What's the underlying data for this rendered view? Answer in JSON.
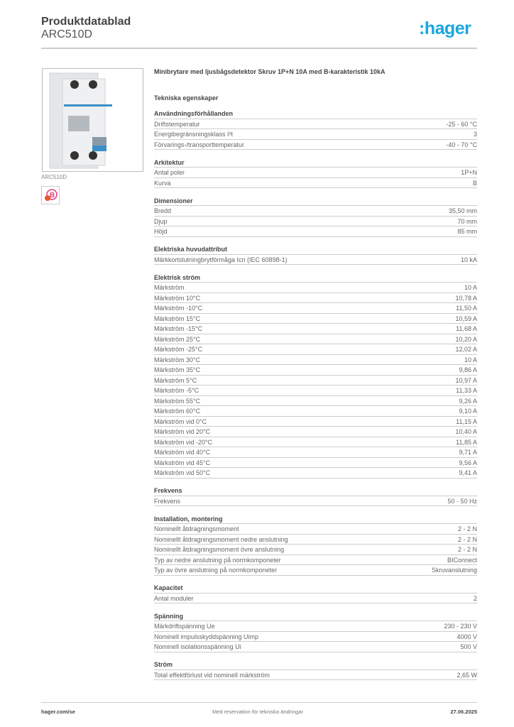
{
  "header": {
    "title": "Produktdatablad",
    "product_code": "ARC510D",
    "logo_text": ":hager",
    "brand_color": "#1aa6df"
  },
  "product": {
    "image_label": "ARC510D",
    "badge_icon": "arc-fault-curve-b-icon",
    "description": "Minibrytare med ljusbågsdetektor Skruv 1P+N 10A med B-karakteristik 10kA"
  },
  "tech_heading": "Tekniska egenskaper",
  "sections": [
    {
      "title": "Användningsförhållanden",
      "rows": [
        {
          "label": "Driftstemperatur",
          "value": "-25 - 60 °C"
        },
        {
          "label": "Energibegränsningsklass I²t",
          "value": "3"
        },
        {
          "label": "Förvarings-/transporttemperatur",
          "value": "-40 - 70 °C"
        }
      ]
    },
    {
      "title": "Arkitektur",
      "rows": [
        {
          "label": "Antal poler",
          "value": "1P+N"
        },
        {
          "label": "Kurva",
          "value": "B"
        }
      ]
    },
    {
      "title": "Dimensioner",
      "rows": [
        {
          "label": "Bredd",
          "value": "35,50 mm"
        },
        {
          "label": "Djup",
          "value": "70 mm"
        },
        {
          "label": "Höjd",
          "value": "85 mm"
        }
      ]
    },
    {
      "title": "Elektriska huvudattribut",
      "rows": [
        {
          "label": "Märkkortslutningbrytförmåga Icn (IEC 60898-1)",
          "value": "10 kA"
        }
      ]
    },
    {
      "title": "Elektrisk ström",
      "rows": [
        {
          "label": "Märkström",
          "value": "10 A"
        },
        {
          "label": "Märkström 10°C",
          "value": "10,78 A"
        },
        {
          "label": "Märkström -10°C",
          "value": "11,50 A"
        },
        {
          "label": "Märkström 15°C",
          "value": "10,59 A"
        },
        {
          "label": "Märkström -15°C",
          "value": "11,68 A"
        },
        {
          "label": "Märkström 25°C",
          "value": "10,20 A"
        },
        {
          "label": "Märkström -25°C",
          "value": "12,02 A"
        },
        {
          "label": "Märkström 30°C",
          "value": "10 A"
        },
        {
          "label": "Märkström 35°C",
          "value": "9,86 A"
        },
        {
          "label": "Märkström 5°C",
          "value": "10,97 A"
        },
        {
          "label": "Märkström -5°C",
          "value": "11,33 A"
        },
        {
          "label": "Märkström 55°C",
          "value": "9,26 A"
        },
        {
          "label": "Märkström 60°C",
          "value": "9,10 A"
        },
        {
          "label": "Märkström vid 0°C",
          "value": "11,15 A"
        },
        {
          "label": "Märkström vid 20°C",
          "value": "10,40 A"
        },
        {
          "label": "Märkström vid -20°C",
          "value": "11,85 A"
        },
        {
          "label": "Märkström vid 40°C",
          "value": "9,71 A"
        },
        {
          "label": "Märkström vid 45°C",
          "value": "9,56 A"
        },
        {
          "label": "Märkström vid 50°C",
          "value": "9,41 A"
        }
      ]
    },
    {
      "title": "Frekvens",
      "rows": [
        {
          "label": "Frekvens",
          "value": "50 - 50 Hz"
        }
      ]
    },
    {
      "title": "Installation, montering",
      "rows": [
        {
          "label": "Nominellt åtdragningsmoment",
          "value": "2 - 2 N"
        },
        {
          "label": "Nominellt åtdragningsmoment nedre anslutning",
          "value": "2 - 2 N"
        },
        {
          "label": "Nominellt åtdragningsmoment övre anslutning",
          "value": "2 - 2 N"
        },
        {
          "label": "Typ av nedre anslutning på normkomponeter",
          "value": "BIConnect"
        },
        {
          "label": "Typ av övre anslutning på normkomponeter",
          "value": "Skruvanslutning"
        }
      ]
    },
    {
      "title": "Kapacitet",
      "rows": [
        {
          "label": "Antal moduler",
          "value": "2"
        }
      ]
    },
    {
      "title": "Spänning",
      "rows": [
        {
          "label": "Märkdriftspänning Ue",
          "value": "230 - 230 V"
        },
        {
          "label": "Nominell impulsskyddspänning Uimp",
          "value": "4000 V"
        },
        {
          "label": "Nominell isolationsspänning Ui",
          "value": "500 V"
        }
      ]
    },
    {
      "title": "Ström",
      "rows": [
        {
          "label": "Total effektförlust vid nominell märkström",
          "value": "2,65 W"
        }
      ]
    }
  ],
  "footer": {
    "website": "hager.com/se",
    "disclaimer": "Med reservation för tekniska ändringar",
    "date": "27.06.2025"
  }
}
